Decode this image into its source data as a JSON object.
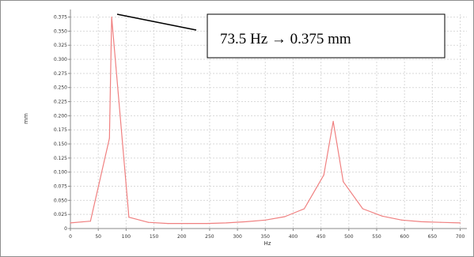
{
  "chart_data": {
    "type": "line",
    "xlabel": "Hz",
    "ylabel": "mm",
    "xlim": [
      0,
      712
    ],
    "ylim": [
      0,
      0.38
    ],
    "x_ticks": [
      "0",
      "50",
      "100",
      "150",
      "200",
      "250",
      "300",
      "350",
      "400",
      "450",
      "500",
      "550",
      "600",
      "650",
      "700"
    ],
    "y_ticks": [
      "0",
      "0.025",
      "0.050",
      "0.075",
      "0.100",
      "0.125",
      "0.150",
      "0.175",
      "0.200",
      "0.225",
      "0.250",
      "0.275",
      "0.300",
      "0.325",
      "0.350",
      "0.375"
    ],
    "grid": true,
    "series": [
      {
        "color": "#f08080",
        "x": [
          0,
          36,
          70,
          74,
          105,
          140,
          175,
          210,
          245,
          280,
          315,
          350,
          385,
          420,
          455,
          472,
          490,
          525,
          560,
          595,
          630,
          665,
          700
        ],
        "y": [
          0.01,
          0.013,
          0.16,
          0.375,
          0.02,
          0.011,
          0.009,
          0.009,
          0.009,
          0.01,
          0.012,
          0.015,
          0.021,
          0.035,
          0.095,
          0.19,
          0.083,
          0.035,
          0.022,
          0.015,
          0.012,
          0.011,
          0.01
        ]
      }
    ],
    "annotation": "73.5 Hz → 0.375 mm"
  },
  "colors": {
    "line": "#f08080",
    "grid": "#d9d9d9",
    "frame": "#8f8f8f"
  }
}
